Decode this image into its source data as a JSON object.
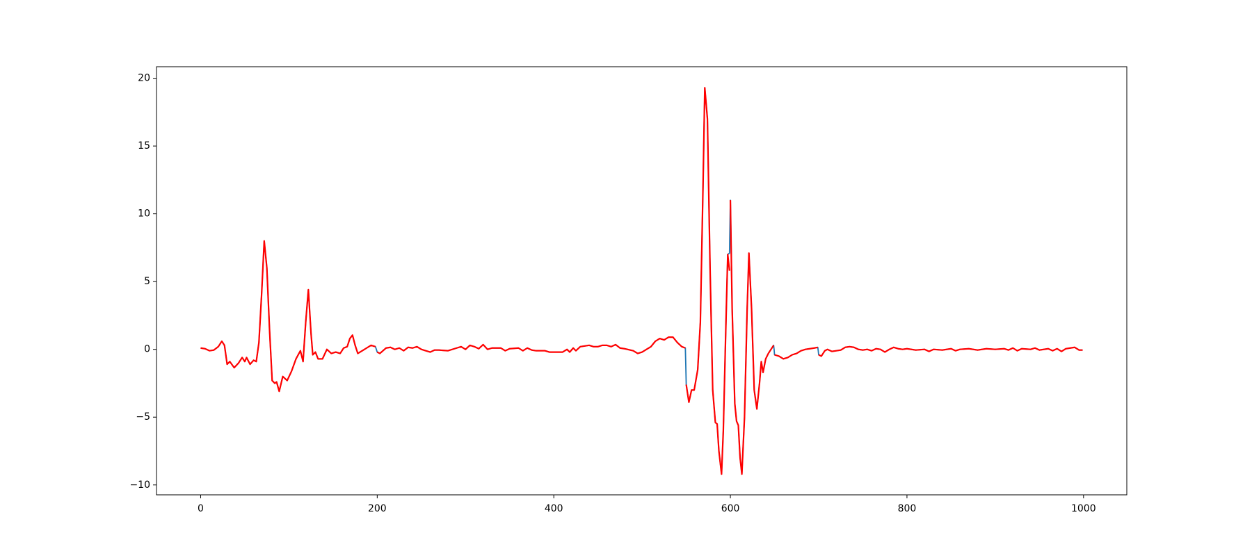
{
  "chart_data": {
    "type": "line",
    "x": [
      0,
      5,
      10,
      15,
      20,
      24,
      27,
      30,
      33,
      38,
      43,
      47,
      50,
      52,
      56,
      60,
      63,
      66,
      69,
      72,
      75,
      78,
      81,
      84,
      86,
      89,
      93,
      98,
      103,
      108,
      113,
      116,
      119,
      122,
      125,
      127,
      130,
      133,
      138,
      143,
      148,
      153,
      158,
      162,
      166,
      169,
      172,
      175,
      178,
      183,
      188,
      193,
      198,
      199,
      200,
      203,
      210,
      215,
      220,
      225,
      230,
      235,
      240,
      245,
      250,
      255,
      260,
      265,
      270,
      280,
      290,
      295,
      300,
      305,
      310,
      315,
      320,
      325,
      330,
      340,
      345,
      350,
      360,
      365,
      370,
      375,
      380,
      390,
      395,
      400,
      410,
      415,
      418,
      422,
      425,
      430,
      440,
      445,
      450,
      455,
      460,
      465,
      470,
      475,
      480,
      490,
      495,
      500,
      505,
      510,
      515,
      520,
      525,
      530,
      535,
      540,
      545,
      549,
      549.5,
      550,
      553,
      556,
      559,
      563,
      566,
      569,
      571,
      574,
      577,
      580,
      583,
      585,
      587,
      590,
      592,
      595,
      597,
      599,
      599.5,
      600,
      602,
      605,
      607,
      609,
      611,
      613,
      616,
      619,
      621,
      624,
      627,
      630,
      633,
      635,
      637,
      640,
      643,
      646,
      649,
      649.5,
      650,
      655,
      660,
      665,
      670,
      675,
      680,
      685,
      690,
      695,
      699,
      699.5,
      700,
      703,
      707,
      710,
      715,
      720,
      725,
      730,
      735,
      740,
      745,
      750,
      755,
      760,
      765,
      770,
      775,
      780,
      785,
      790,
      795,
      800,
      810,
      820,
      825,
      830,
      840,
      850,
      855,
      860,
      870,
      880,
      890,
      900,
      910,
      915,
      920,
      925,
      930,
      940,
      945,
      950,
      960,
      965,
      970,
      975,
      980,
      985,
      990,
      995,
      999
    ],
    "series": [
      {
        "color": "#1f77b4",
        "values": [
          0.1,
          0.05,
          -0.1,
          -0.05,
          0.2,
          0.6,
          0.3,
          -1.1,
          -0.9,
          -1.35,
          -1.0,
          -0.6,
          -0.9,
          -0.6,
          -1.1,
          -0.8,
          -0.9,
          0.5,
          4,
          8.0,
          6,
          1.5,
          -2.3,
          -2.5,
          -2.4,
          -3.1,
          -2.0,
          -2.3,
          -1.6,
          -0.7,
          -0.1,
          -0.9,
          2,
          4.4,
          1.2,
          -0.4,
          -0.2,
          -0.7,
          -0.7,
          0,
          -0.3,
          -0.2,
          -0.3,
          0.1,
          0.2,
          0.8,
          1.05,
          0.3,
          -0.3,
          -0.1,
          0.1,
          0.3,
          0.2,
          0.0,
          -0.2,
          -0.3,
          0.1,
          0.15,
          0,
          0.1,
          -0.1,
          0.15,
          0.1,
          0.2,
          0,
          -0.1,
          -0.2,
          -0.05,
          -0.05,
          -0.1,
          0.1,
          0.2,
          0,
          0.3,
          0.2,
          0.05,
          0.35,
          0,
          0.1,
          0.1,
          -0.1,
          0.05,
          0.1,
          -0.1,
          0.1,
          -0.05,
          -0.1,
          -0.1,
          -0.2,
          -0.2,
          -0.2,
          0,
          -0.2,
          0.1,
          -0.1,
          0.2,
          0.3,
          0.2,
          0.2,
          0.3,
          0.3,
          0.2,
          0.35,
          0.1,
          0.05,
          -0.1,
          -0.3,
          -0.2,
          0,
          0.2,
          0.6,
          0.8,
          0.7,
          0.9,
          0.9,
          0.5,
          0.2,
          0.1,
          -1.2,
          -2.6,
          -3.9,
          -3.0,
          -3.0,
          -1.5,
          2,
          12,
          19.3,
          17,
          6,
          -3,
          -5.4,
          -5.5,
          -7.5,
          -9.2,
          -6,
          2,
          7.0,
          7.1,
          9,
          11.0,
          3,
          -4,
          -5.3,
          -5.6,
          -8,
          -9.2,
          -5,
          3,
          7.1,
          3,
          -3,
          -4.4,
          -2.5,
          -0.9,
          -1.7,
          -0.7,
          -0.3,
          0.0,
          0.3,
          0.0,
          -0.4,
          -0.5,
          -0.7,
          -0.6,
          -0.4,
          -0.3,
          -0.1,
          0,
          0.05,
          0.1,
          0.15,
          -0.1,
          -0.4,
          -0.5,
          -0.1,
          0,
          -0.15,
          -0.1,
          -0.05,
          0.15,
          0.2,
          0.15,
          0,
          -0.05,
          0,
          -0.1,
          0.05,
          0,
          -0.2,
          0,
          0.15,
          0.05,
          0,
          0.05,
          -0.05,
          0,
          -0.15,
          0,
          -0.05,
          0.05,
          -0.1,
          0,
          0.05,
          -0.05,
          0.05,
          0,
          0.05,
          -0.05,
          0.1,
          -0.1,
          0.05,
          0,
          0.1,
          -0.05,
          0.05,
          -0.1,
          0.05,
          -0.15,
          0.05,
          0.1,
          0.15,
          -0.05,
          -0.05
        ]
      },
      {
        "color": "#ff0000",
        "values": [
          0.1,
          0.05,
          -0.1,
          -0.05,
          0.2,
          0.6,
          0.3,
          -1.1,
          -0.9,
          -1.35,
          -1.0,
          -0.6,
          -0.9,
          -0.6,
          -1.1,
          -0.8,
          -0.9,
          0.5,
          4,
          8.0,
          6,
          1.5,
          -2.3,
          -2.5,
          -2.4,
          -3.1,
          -2.0,
          -2.3,
          -1.6,
          -0.7,
          -0.1,
          -0.9,
          2,
          4.4,
          1.2,
          -0.4,
          -0.2,
          -0.7,
          -0.7,
          0,
          -0.3,
          -0.2,
          -0.3,
          0.1,
          0.2,
          0.8,
          1.05,
          0.3,
          -0.3,
          -0.1,
          0.1,
          0.3,
          0.2,
          null,
          -0.2,
          -0.3,
          0.1,
          0.15,
          0,
          0.1,
          -0.1,
          0.15,
          0.1,
          0.2,
          0,
          -0.1,
          -0.2,
          -0.05,
          -0.05,
          -0.1,
          0.1,
          0.2,
          0,
          0.3,
          0.2,
          0.05,
          0.35,
          0,
          0.1,
          0.1,
          -0.1,
          0.05,
          0.1,
          -0.1,
          0.1,
          -0.05,
          -0.1,
          -0.1,
          -0.2,
          -0.2,
          -0.2,
          0,
          -0.2,
          0.1,
          -0.1,
          0.2,
          0.3,
          0.2,
          0.2,
          0.3,
          0.3,
          0.2,
          0.35,
          0.1,
          0.05,
          -0.1,
          -0.3,
          -0.2,
          0,
          0.2,
          0.6,
          0.8,
          0.7,
          0.9,
          0.9,
          0.5,
          0.2,
          0.1,
          null,
          -2.6,
          -3.9,
          -3.0,
          -3.0,
          -1.5,
          2,
          12,
          19.3,
          17,
          6,
          -3,
          -5.4,
          -5.5,
          -7.5,
          -9.2,
          -6,
          2,
          7.0,
          5.8,
          null,
          11.0,
          3,
          -4,
          -5.3,
          -5.6,
          -8,
          -9.2,
          -5,
          3,
          7.1,
          3,
          -3,
          -4.4,
          -2.5,
          -0.9,
          -1.7,
          -0.7,
          -0.3,
          0.0,
          0.3,
          null,
          -0.4,
          -0.5,
          -0.7,
          -0.6,
          -0.4,
          -0.3,
          -0.1,
          0,
          0.05,
          0.1,
          0.15,
          null,
          -0.4,
          -0.5,
          -0.1,
          0,
          -0.15,
          -0.1,
          -0.05,
          0.15,
          0.2,
          0.15,
          0,
          -0.05,
          0,
          -0.1,
          0.05,
          0,
          -0.2,
          0,
          0.15,
          0.05,
          0,
          0.05,
          -0.05,
          0,
          -0.15,
          0,
          -0.05,
          0.05,
          -0.1,
          0,
          0.05,
          -0.05,
          0.05,
          0,
          0.05,
          -0.05,
          0.1,
          -0.1,
          0.05,
          0,
          0.1,
          -0.05,
          0.05,
          -0.1,
          0.05,
          -0.15,
          0.05,
          0.1,
          0.15,
          -0.05,
          -0.05
        ]
      }
    ],
    "xlim": [
      -50,
      1049
    ],
    "xticks": [
      0,
      200,
      400,
      600,
      800,
      1000
    ],
    "ylim": [
      -10.73,
      20.85
    ],
    "yticks": [
      {
        "value": -10,
        "label": "−10"
      },
      {
        "value": -5,
        "label": "−5"
      },
      0,
      5,
      10,
      15,
      20
    ]
  }
}
